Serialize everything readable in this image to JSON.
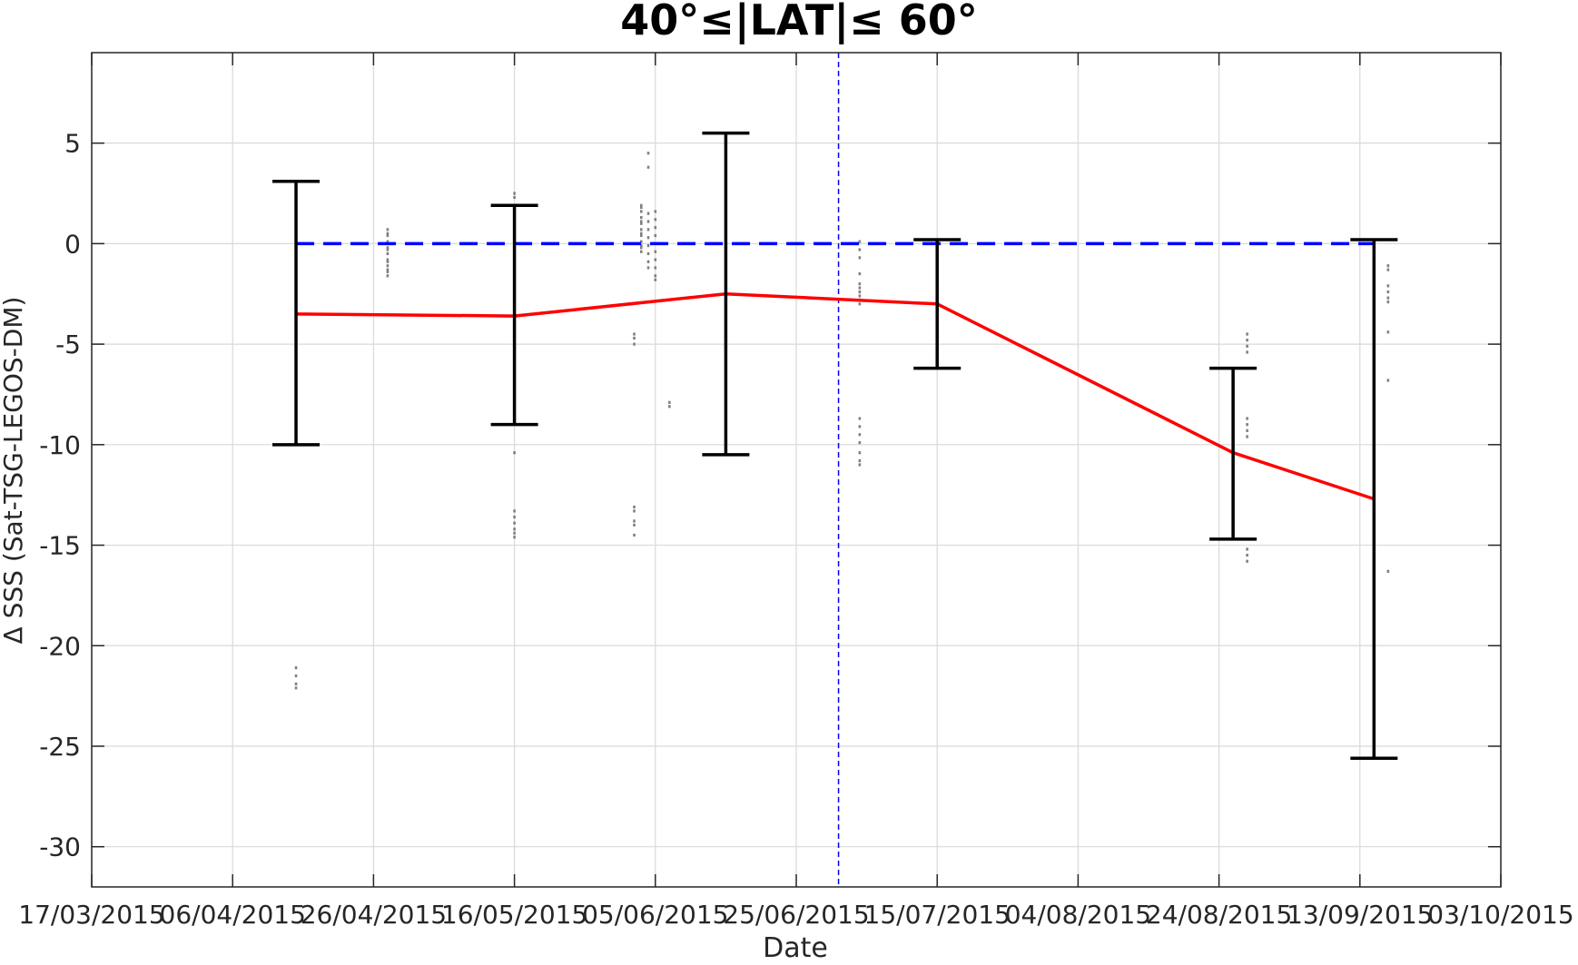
{
  "chart_data": {
    "type": "line",
    "title": "40°≤|LAT|≤ 60°",
    "xlabel": "Date",
    "ylabel": "Δ SSS (Sat-TSG-LEGOS-DM)",
    "x_ticks": [
      "17/03/2015",
      "06/04/2015",
      "26/04/2015",
      "16/05/2015",
      "05/06/2015",
      "25/06/2015",
      "15/07/2015",
      "04/08/2015",
      "24/08/2015",
      "13/09/2015",
      "03/10/2015"
    ],
    "x_tick_labels": [
      "17/03/2015",
      "06/04/2015",
      "26/04/2015",
      "16/05/2015",
      "05/06/2015",
      "25/06/2015",
      "15/07/2015",
      "04/08/2015",
      "24/08/2015",
      "13/09/2015",
      "03/10/2015"
    ],
    "xlim": [
      "2015-03-17",
      "2015-10-03"
    ],
    "y_ticks": [
      5,
      0,
      -5,
      -10,
      -15,
      -20,
      -25,
      -30
    ],
    "y_tick_labels": [
      "5",
      "0",
      "-5",
      "-10",
      "-15",
      "-20",
      "-25",
      "-30"
    ],
    "ylim": [
      -32,
      9.5
    ],
    "grid": true,
    "mean_line": {
      "color": "#ff0000",
      "points": [
        {
          "x": "2015-04-15",
          "y": -3.5
        },
        {
          "x": "2015-05-16",
          "y": -3.6
        },
        {
          "x": "2015-06-15",
          "y": -2.5
        },
        {
          "x": "2015-07-15",
          "y": -3.0
        },
        {
          "x": "2015-08-26",
          "y": -10.4
        },
        {
          "x": "2015-09-15",
          "y": -12.7
        }
      ]
    },
    "error_bars": {
      "color": "#000000",
      "bars": [
        {
          "x": "2015-04-15",
          "low": -10.0,
          "high": 3.1
        },
        {
          "x": "2015-05-16",
          "low": -9.0,
          "high": 1.9
        },
        {
          "x": "2015-06-15",
          "low": -10.5,
          "high": 5.5
        },
        {
          "x": "2015-07-15",
          "low": -6.2,
          "high": 0.2
        },
        {
          "x": "2015-08-26",
          "low": -14.7,
          "high": -6.2
        },
        {
          "x": "2015-09-15",
          "low": -25.6,
          "high": 0.2
        }
      ]
    },
    "zero_reference": {
      "color": "#0000ff",
      "y": 0,
      "x_start": "2015-04-15",
      "x_end": "2015-09-15"
    },
    "vertical_reference": {
      "color": "#0000ff",
      "x": "2015-07-01"
    },
    "scatter": {
      "color": "#808080",
      "groups": [
        {
          "x": "2015-04-15",
          "y": [
            -5.4,
            -5.7,
            -6.0,
            -6.3,
            -6.6,
            -21.1,
            -21.5,
            -21.9,
            -22.1
          ]
        },
        {
          "x": "2015-04-28",
          "y": [
            0.7,
            0.4,
            0.1,
            -0.2,
            -0.5,
            -0.8,
            -1.1,
            -1.4,
            -1.6,
            0.5,
            -0.3,
            -0.9,
            -1.3
          ]
        },
        {
          "x": "2015-05-16",
          "y": [
            2.5,
            2.3,
            1.7,
            1.2,
            0.9,
            0.5,
            0.2,
            -0.2,
            -0.6,
            -1.0,
            -1.3,
            -1.7,
            -2.4,
            -3.0,
            -3.3,
            -3.7,
            -5.1,
            -10.4,
            -13.3,
            -13.6,
            -13.9,
            -14.2,
            -14.4,
            -14.6
          ]
        },
        {
          "x": "2015-06-02",
          "y": [
            -4.5,
            -4.7,
            -5.0,
            -13.1,
            -13.3,
            -13.8,
            -14.0,
            -14.5
          ]
        },
        {
          "x": "2015-06-03",
          "y": [
            1.9,
            1.6,
            1.3,
            1.0,
            0.7,
            0.4,
            0.1,
            -0.2,
            -0.4,
            1.8,
            1.1,
            0.5,
            -0.1
          ]
        },
        {
          "x": "2015-06-04",
          "y": [
            4.5,
            3.8,
            1.5,
            1.1,
            0.7,
            0.3,
            -0.1,
            -0.5,
            -0.9,
            -1.2
          ]
        },
        {
          "x": "2015-06-05",
          "y": [
            1.6,
            1.2,
            0.8,
            0.4,
            0.0,
            -0.4,
            -0.8,
            -1.2,
            -1.6,
            -1.8
          ]
        },
        {
          "x": "2015-06-07",
          "y": [
            -7.9,
            -8.1
          ]
        },
        {
          "x": "2015-07-04",
          "y": [
            0.1,
            -0.3,
            -0.7,
            -1.5,
            -2.0,
            -2.2,
            -2.4,
            -2.6,
            -2.8,
            -3.0,
            -8.7,
            -9.1,
            -9.5,
            -9.9,
            -10.4,
            -10.8,
            -11.0
          ]
        },
        {
          "x": "2015-08-28",
          "y": [
            -4.5,
            -4.8,
            -5.1,
            -5.4,
            -8.7,
            -9.0,
            -9.3,
            -9.6,
            -15.2,
            -15.5,
            -15.8
          ]
        },
        {
          "x": "2015-09-17",
          "y": [
            -1.1,
            -1.3,
            -2.1,
            -2.4,
            -2.7,
            -2.9,
            -4.4,
            -6.8,
            -16.3
          ]
        }
      ]
    }
  }
}
